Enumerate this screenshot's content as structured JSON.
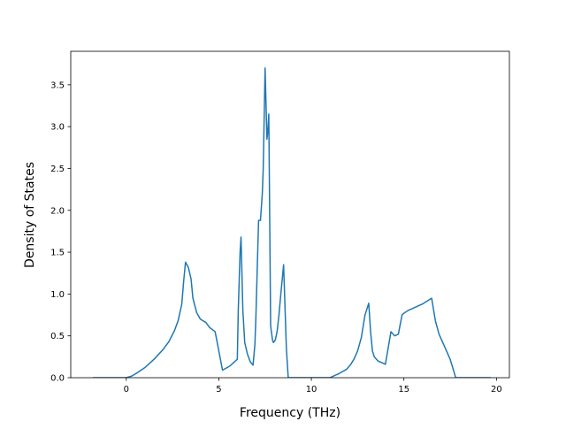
{
  "chart_data": {
    "type": "line",
    "xlabel": "Frequency (THz)",
    "ylabel": "Density of States",
    "xlim": [
      -3.0,
      20.7
    ],
    "ylim": [
      0.0,
      3.9
    ],
    "xticks": [
      0,
      5,
      10,
      15,
      20
    ],
    "yticks": [
      0.0,
      0.5,
      1.0,
      1.5,
      2.0,
      2.5,
      3.0,
      3.5
    ],
    "xtick_labels": [
      "0",
      "5",
      "10",
      "15",
      "20"
    ],
    "ytick_labels": [
      "0.0",
      "0.5",
      "1.0",
      "1.5",
      "2.0",
      "2.5",
      "3.0",
      "3.5"
    ],
    "grid": false,
    "series": [
      {
        "color": "#1f77b4",
        "x": [
          -1.8,
          -1.0,
          -0.5,
          0.0,
          0.3,
          0.6,
          1.0,
          1.5,
          2.0,
          2.3,
          2.6,
          2.8,
          3.0,
          3.1,
          3.2,
          3.35,
          3.5,
          3.6,
          3.8,
          4.0,
          4.3,
          4.5,
          4.8,
          5.2,
          5.6,
          5.8,
          6.0,
          6.05,
          6.15,
          6.2,
          6.3,
          6.4,
          6.55,
          6.7,
          6.85,
          6.95,
          7.0,
          7.1,
          7.15,
          7.25,
          7.35,
          7.4,
          7.5,
          7.6,
          7.65,
          7.7,
          7.8,
          7.9,
          7.95,
          8.05,
          8.15,
          8.25,
          8.35,
          8.5,
          8.65,
          8.75,
          8.85,
          8.92,
          9.0,
          9.1,
          9.2,
          10.0,
          11.0,
          11.5,
          11.9,
          12.1,
          12.3,
          12.5,
          12.7,
          12.9,
          13.0,
          13.1,
          13.2,
          13.3,
          13.4,
          13.6,
          14.0,
          14.3,
          14.5,
          14.7,
          14.9,
          15.0,
          15.2,
          15.5,
          16.0,
          16.5,
          16.7,
          16.9,
          17.2,
          17.5,
          17.8,
          18.0,
          18.5,
          19.0,
          19.7
        ],
        "values": [
          0.0,
          0.0,
          0.0,
          0.0,
          0.02,
          0.06,
          0.12,
          0.22,
          0.34,
          0.43,
          0.56,
          0.68,
          0.88,
          1.15,
          1.38,
          1.32,
          1.18,
          0.95,
          0.78,
          0.7,
          0.66,
          0.6,
          0.55,
          0.09,
          0.14,
          0.18,
          0.22,
          0.8,
          1.5,
          1.68,
          0.8,
          0.42,
          0.28,
          0.19,
          0.15,
          0.4,
          0.7,
          1.5,
          1.88,
          1.88,
          2.2,
          2.5,
          3.7,
          2.85,
          2.95,
          3.15,
          0.62,
          0.45,
          0.42,
          0.45,
          0.55,
          0.75,
          1.0,
          1.35,
          0.35,
          0.0,
          0.0,
          0.0,
          0.0,
          0.0,
          0.0,
          0.0,
          0.0,
          0.05,
          0.1,
          0.15,
          0.22,
          0.32,
          0.48,
          0.75,
          0.82,
          0.89,
          0.55,
          0.32,
          0.25,
          0.2,
          0.16,
          0.55,
          0.5,
          0.52,
          0.75,
          0.77,
          0.8,
          0.83,
          0.88,
          0.95,
          0.68,
          0.52,
          0.37,
          0.22,
          0.0,
          0.0,
          0.0,
          0.0,
          0.0
        ]
      }
    ]
  }
}
